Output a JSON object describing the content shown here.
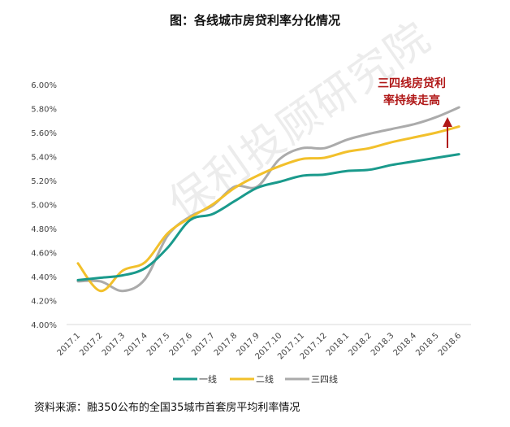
{
  "title": "图：各线城市房贷利率分化情况",
  "source_note": "资料来源：融350公布的全国35城市首套房平均利率情况",
  "annotation": [
    "三四线房贷利",
    "率持续走高"
  ],
  "watermark": "保利投顾研究院",
  "colors": {
    "tier1": "#1a9a8c",
    "tier2": "#f2c02b",
    "tier34": "#ababab",
    "annotation": "#b01818"
  },
  "chart_data": {
    "type": "line",
    "categories": [
      "2017.1",
      "2017.2",
      "2017.3",
      "2017.4",
      "2017.5",
      "2017.6",
      "2017.7",
      "2017.8",
      "2017.9",
      "2017.10",
      "2017.11",
      "2017.12",
      "2018.1",
      "2018.2",
      "2018.3",
      "2018.4",
      "2018.5",
      "2018.6"
    ],
    "y_ticks": [
      "4.00%",
      "4.20%",
      "4.40%",
      "4.60%",
      "4.80%",
      "5.00%",
      "5.20%",
      "5.40%",
      "5.60%",
      "5.80%",
      "6.00%"
    ],
    "ylim": [
      4.0,
      6.0
    ],
    "legend_position": "bottom",
    "grid": false,
    "series": [
      {
        "name": "一线",
        "color": "#1a9a8c",
        "values": [
          4.37,
          4.39,
          4.41,
          4.47,
          4.64,
          4.87,
          4.92,
          5.03,
          5.14,
          5.19,
          5.24,
          5.25,
          5.28,
          5.29,
          5.33,
          5.36,
          5.39,
          5.42
        ]
      },
      {
        "name": "二线",
        "color": "#f2c02b",
        "values": [
          4.51,
          4.28,
          4.45,
          4.52,
          4.76,
          4.89,
          5.0,
          5.14,
          5.24,
          5.32,
          5.38,
          5.39,
          5.44,
          5.47,
          5.52,
          5.56,
          5.6,
          5.65
        ]
      },
      {
        "name": "三四线",
        "color": "#ababab",
        "values": [
          4.36,
          4.36,
          4.28,
          4.38,
          4.74,
          4.9,
          4.99,
          5.15,
          5.15,
          5.38,
          5.47,
          5.47,
          5.54,
          5.59,
          5.63,
          5.67,
          5.73,
          5.81
        ]
      }
    ]
  }
}
